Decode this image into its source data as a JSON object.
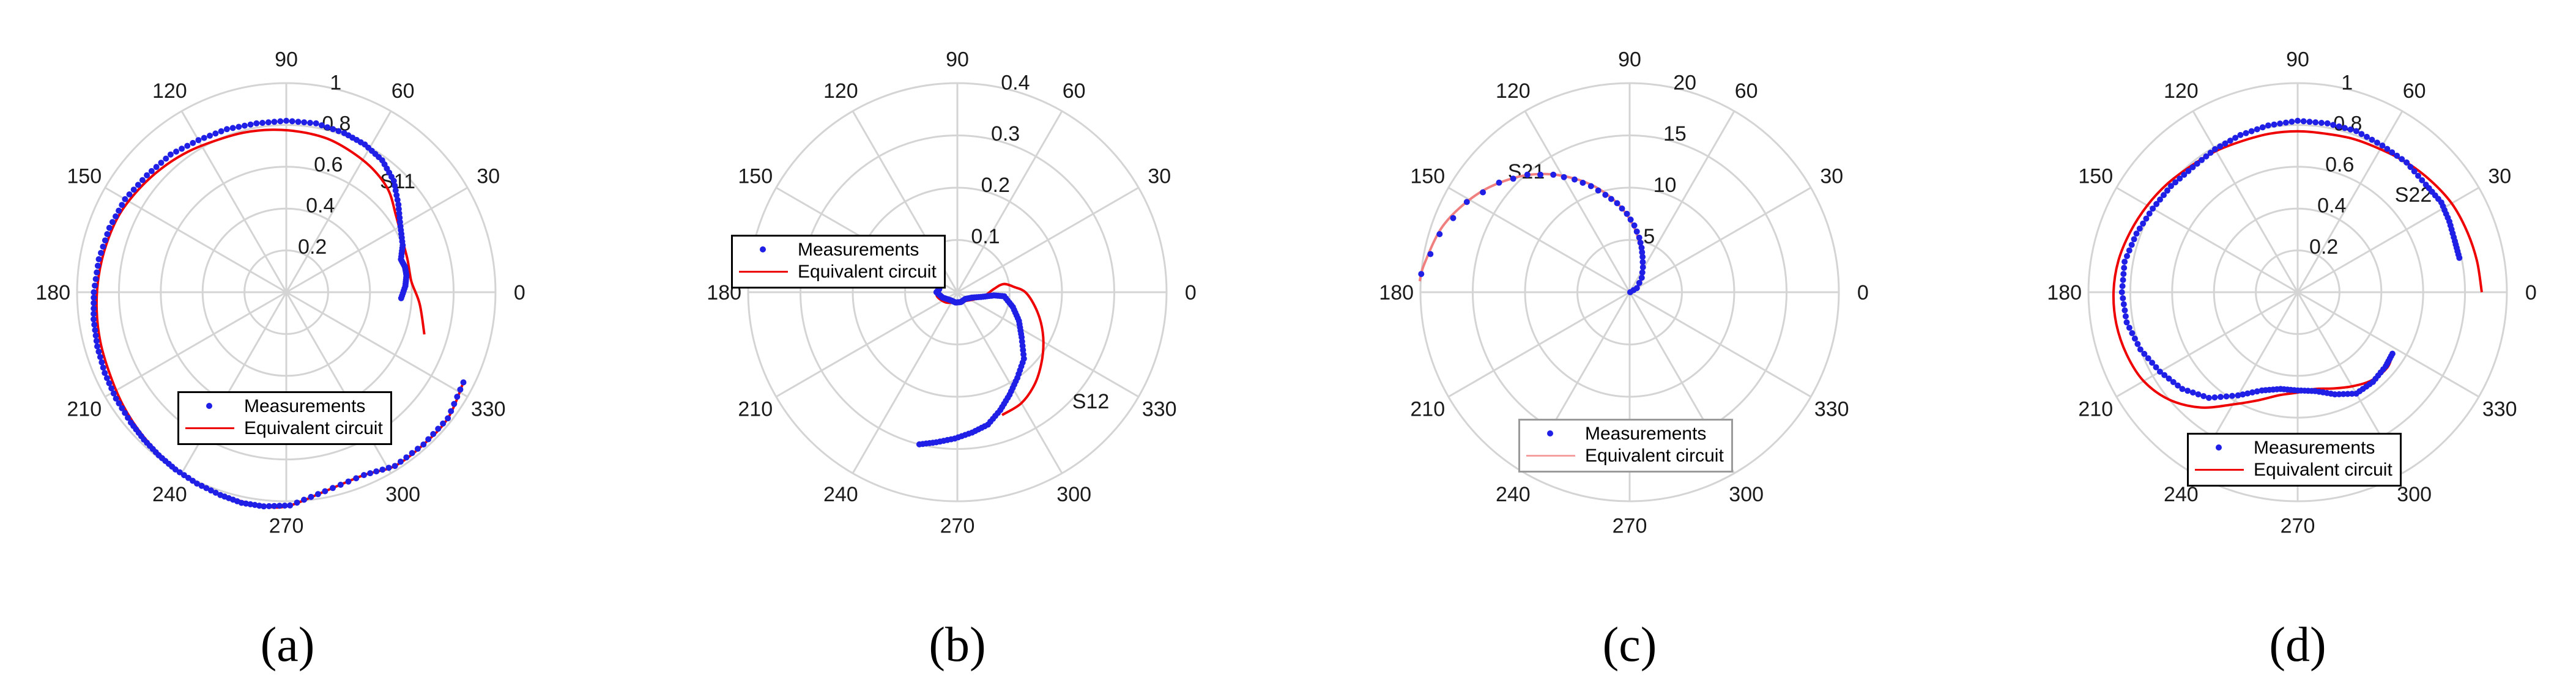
{
  "figure_captions": [
    "(a)",
    "(b)",
    "(c)",
    "(d)"
  ],
  "colors": {
    "measurement": "#1f1fe6",
    "circuit": "#ee0000",
    "grid": "#d4d4d4",
    "axis_text": "#1a1a1a"
  },
  "chart_data": [
    {
      "type": "polar",
      "panel": "a",
      "caption": "(a)",
      "annotation": "S11",
      "rmax": 1,
      "radial_ticks": [
        0.2,
        0.4,
        0.6,
        0.8,
        1
      ],
      "radial_tick_labels": [
        "0.2",
        "0.4",
        "0.6",
        "0.8",
        "1"
      ],
      "angle_ticks": [
        0,
        30,
        60,
        90,
        120,
        150,
        180,
        210,
        240,
        270,
        300,
        330
      ],
      "angle_tick_labels": [
        "0",
        "30",
        "60",
        "90",
        "120",
        "150",
        "180",
        "210",
        "240",
        "270",
        "300",
        "330"
      ],
      "legend": {
        "measurements": "Measurements",
        "circuit": "Equivalent circuit",
        "placement": "lower-center"
      },
      "series": [
        {
          "name": "Measurements",
          "style": "markers",
          "points": [
            [
              -3,
              0.55
            ],
            [
              3,
              0.57
            ],
            [
              8,
              0.58
            ],
            [
              12,
              0.58
            ],
            [
              16,
              0.57
            ],
            [
              22,
              0.6
            ],
            [
              30,
              0.63
            ],
            [
              38,
              0.68
            ],
            [
              46,
              0.74
            ],
            [
              54,
              0.78
            ],
            [
              62,
              0.8
            ],
            [
              70,
              0.81
            ],
            [
              80,
              0.82
            ],
            [
              90,
              0.82
            ],
            [
              100,
              0.82
            ],
            [
              110,
              0.83
            ],
            [
              120,
              0.84
            ],
            [
              130,
              0.86
            ],
            [
              140,
              0.87
            ],
            [
              150,
              0.89
            ],
            [
              160,
              0.9
            ],
            [
              170,
              0.91
            ],
            [
              180,
              0.92
            ],
            [
              188,
              0.93
            ],
            [
              196,
              0.94
            ],
            [
              204,
              0.95
            ],
            [
              212,
              0.96
            ],
            [
              220,
              0.97
            ],
            [
              226,
              0.98
            ],
            [
              232,
              0.99
            ],
            [
              238,
              1.0
            ],
            [
              245,
              1.01
            ],
            [
              252,
              1.02
            ],
            [
              258,
              1.03
            ],
            [
              264,
              1.03
            ],
            [
              271,
              1.02
            ],
            [
              281,
              0.97
            ],
            [
              293,
              0.95
            ],
            [
              302,
              0.98
            ],
            [
              312,
              0.98
            ],
            [
              322,
              0.98
            ],
            [
              333,
              0.95
            ]
          ]
        },
        {
          "name": "Equivalent circuit",
          "style": "line",
          "points": [
            [
              -17,
              0.69
            ],
            [
              -5,
              0.64
            ],
            [
              5,
              0.6
            ],
            [
              15,
              0.6
            ],
            [
              25,
              0.61
            ],
            [
              35,
              0.64
            ],
            [
              45,
              0.69
            ],
            [
              55,
              0.72
            ],
            [
              65,
              0.74
            ],
            [
              75,
              0.76
            ],
            [
              85,
              0.77
            ],
            [
              95,
              0.78
            ],
            [
              105,
              0.79
            ],
            [
              115,
              0.8
            ],
            [
              125,
              0.82
            ],
            [
              135,
              0.84
            ],
            [
              145,
              0.86
            ],
            [
              155,
              0.88
            ],
            [
              165,
              0.89
            ],
            [
              175,
              0.9
            ],
            [
              185,
              0.91
            ],
            [
              195,
              0.92
            ],
            [
              205,
              0.93
            ],
            [
              215,
              0.95
            ],
            [
              225,
              0.97
            ],
            [
              235,
              0.99
            ],
            [
              245,
              1.01
            ],
            [
              255,
              1.02
            ],
            [
              265,
              1.03
            ],
            [
              271,
              1.02
            ],
            [
              281,
              0.97
            ],
            [
              293,
              0.95
            ],
            [
              302,
              0.98
            ],
            [
              312,
              0.98
            ],
            [
              322,
              0.98
            ],
            [
              333,
              0.95
            ]
          ]
        }
      ]
    },
    {
      "type": "polar",
      "panel": "b",
      "caption": "(b)",
      "annotation": "S12",
      "rmax": 0.4,
      "radial_ticks": [
        0.1,
        0.2,
        0.3,
        0.4
      ],
      "radial_tick_labels": [
        "0.1",
        "0.2",
        "0.3",
        "0.4"
      ],
      "angle_ticks": [
        0,
        30,
        60,
        90,
        120,
        150,
        180,
        210,
        240,
        270,
        300,
        330
      ],
      "angle_tick_labels": [
        "0",
        "30",
        "60",
        "90",
        "120",
        "150",
        "180",
        "210",
        "240",
        "270",
        "300",
        "330"
      ],
      "legend": {
        "measurements": "Measurements",
        "circuit": "Equivalent circuit",
        "placement": "left"
      },
      "series": [
        {
          "name": "Measurements",
          "style": "markers",
          "points": [
            [
              170,
              0.035
            ],
            [
              180,
              0.04
            ],
            [
              200,
              0.03
            ],
            [
              230,
              0.02
            ],
            [
              260,
              0.02
            ],
            [
              290,
              0.02
            ],
            [
              320,
              0.02
            ],
            [
              340,
              0.03
            ],
            [
              350,
              0.05
            ],
            [
              355,
              0.07
            ],
            [
              355,
              0.09
            ],
            [
              345,
              0.11
            ],
            [
              335,
              0.13
            ],
            [
              325,
              0.15
            ],
            [
              315,
              0.18
            ],
            [
              305,
              0.2
            ],
            [
              297,
              0.22
            ],
            [
              290,
              0.24
            ],
            [
              283,
              0.26
            ],
            [
              276,
              0.27
            ],
            [
              269,
              0.28
            ],
            [
              262,
              0.29
            ],
            [
              256,
              0.3
            ]
          ]
        },
        {
          "name": "Equivalent circuit",
          "style": "line",
          "points": [
            [
              170,
              0.035
            ],
            [
              190,
              0.04
            ],
            [
              220,
              0.03
            ],
            [
              260,
              0.02
            ],
            [
              300,
              0.02
            ],
            [
              330,
              0.03
            ],
            [
              350,
              0.05
            ],
            [
              5,
              0.07
            ],
            [
              10,
              0.09
            ],
            [
              5,
              0.11
            ],
            [
              0,
              0.13
            ],
            [
              350,
              0.15
            ],
            [
              340,
              0.17
            ],
            [
              330,
              0.19
            ],
            [
              320,
              0.21
            ],
            [
              310,
              0.23
            ],
            [
              300,
              0.245
            ],
            [
              290,
              0.25
            ]
          ]
        }
      ]
    },
    {
      "type": "polar",
      "panel": "c",
      "caption": "(c)",
      "annotation": "S21",
      "rmax": 20,
      "radial_ticks": [
        5,
        10,
        15,
        20
      ],
      "radial_tick_labels": [
        "5",
        "10",
        "15",
        "20"
      ],
      "angle_ticks": [
        0,
        30,
        60,
        90,
        120,
        150,
        180,
        210,
        240,
        270,
        300,
        330
      ],
      "angle_tick_labels": [
        "0",
        "30",
        "60",
        "90",
        "120",
        "150",
        "180",
        "210",
        "240",
        "270",
        "300",
        "330"
      ],
      "legend": {
        "measurements": "Measurements",
        "circuit": "Equivalent circuit",
        "placement": "bottom"
      },
      "series": [
        {
          "name": "Measurements",
          "style": "markers",
          "points": [
            [
              0,
              0.05
            ],
            [
              30,
              0.8
            ],
            [
              50,
              1.8
            ],
            [
              62,
              2.7
            ],
            [
              70,
              3.6
            ],
            [
              75,
              4.4
            ],
            [
              80,
              5.3
            ],
            [
              86,
              6.4
            ],
            [
              92,
              7.5
            ],
            [
              98,
              8.6
            ],
            [
              104,
              9.6
            ],
            [
              110,
              10.8
            ],
            [
              116,
              12.0
            ],
            [
              123,
              13.4
            ],
            [
              131,
              14.9
            ],
            [
              140,
              16.3
            ],
            [
              151,
              17.8
            ],
            [
              163,
              19.0
            ],
            [
              175,
              20.0
            ]
          ]
        },
        {
          "name": "Equivalent circuit",
          "style": "line",
          "points": [
            [
              0,
              0.05
            ],
            [
              20,
              0.5
            ],
            [
              40,
              1.3
            ],
            [
              55,
              2.2
            ],
            [
              66,
              3.1
            ],
            [
              74,
              4.0
            ],
            [
              80,
              5.0
            ],
            [
              86,
              6.2
            ],
            [
              93,
              7.6
            ],
            [
              100,
              9.0
            ],
            [
              108,
              10.6
            ],
            [
              116,
              12.1
            ],
            [
              125,
              13.8
            ],
            [
              135,
              15.5
            ],
            [
              147,
              17.3
            ],
            [
              160,
              18.9
            ],
            [
              172,
              19.8
            ],
            [
              177,
              20.1
            ]
          ]
        }
      ]
    },
    {
      "type": "polar",
      "panel": "d",
      "caption": "(d)",
      "annotation": "S22",
      "rmax": 1,
      "radial_ticks": [
        0.2,
        0.4,
        0.6,
        0.8,
        1
      ],
      "radial_tick_labels": [
        "0.2",
        "0.4",
        "0.6",
        "0.8",
        "1"
      ],
      "angle_ticks": [
        0,
        30,
        60,
        90,
        120,
        150,
        180,
        210,
        240,
        270,
        300,
        330
      ],
      "angle_tick_labels": [
        "0",
        "30",
        "60",
        "90",
        "120",
        "150",
        "180",
        "210",
        "240",
        "270",
        "300",
        "330"
      ],
      "legend": {
        "measurements": "Measurements",
        "circuit": "Equivalent circuit",
        "placement": "lower-center"
      },
      "series": [
        {
          "name": "Measurements",
          "style": "markers",
          "points": [
            [
              12,
              0.79
            ],
            [
              18,
              0.79
            ],
            [
              25,
              0.8
            ],
            [
              32,
              0.81
            ],
            [
              40,
              0.8
            ],
            [
              50,
              0.81
            ],
            [
              60,
              0.81
            ],
            [
              70,
              0.82
            ],
            [
              80,
              0.82
            ],
            [
              90,
              0.82
            ],
            [
              100,
              0.81
            ],
            [
              110,
              0.8
            ],
            [
              120,
              0.79
            ],
            [
              130,
              0.78
            ],
            [
              140,
              0.79
            ],
            [
              150,
              0.8
            ],
            [
              160,
              0.82
            ],
            [
              170,
              0.84
            ],
            [
              180,
              0.84
            ],
            [
              190,
              0.83
            ],
            [
              200,
              0.8
            ],
            [
              210,
              0.76
            ],
            [
              220,
              0.72
            ],
            [
              230,
              0.66
            ],
            [
              240,
              0.57
            ],
            [
              250,
              0.5
            ],
            [
              260,
              0.47
            ],
            [
              270,
              0.47
            ],
            [
              280,
              0.48
            ],
            [
              290,
              0.52
            ],
            [
              300,
              0.56
            ],
            [
              310,
              0.56
            ],
            [
              320,
              0.55
            ],
            [
              327,
              0.54
            ]
          ]
        },
        {
          "name": "Equivalent circuit",
          "style": "line",
          "points": [
            [
              0,
              0.88
            ],
            [
              10,
              0.87
            ],
            [
              20,
              0.86
            ],
            [
              30,
              0.85
            ],
            [
              40,
              0.83
            ],
            [
              50,
              0.81
            ],
            [
              60,
              0.79
            ],
            [
              70,
              0.78
            ],
            [
              80,
              0.77
            ],
            [
              90,
              0.77
            ],
            [
              100,
              0.77
            ],
            [
              110,
              0.77
            ],
            [
              120,
              0.78
            ],
            [
              130,
              0.79
            ],
            [
              140,
              0.81
            ],
            [
              150,
              0.83
            ],
            [
              160,
              0.85
            ],
            [
              170,
              0.87
            ],
            [
              180,
              0.88
            ],
            [
              190,
              0.88
            ],
            [
              200,
              0.87
            ],
            [
              210,
              0.85
            ],
            [
              220,
              0.8
            ],
            [
              230,
              0.72
            ],
            [
              240,
              0.62
            ],
            [
              250,
              0.55
            ],
            [
              260,
              0.5
            ],
            [
              270,
              0.48
            ],
            [
              280,
              0.47
            ],
            [
              290,
              0.49
            ],
            [
              300,
              0.52
            ],
            [
              310,
              0.55
            ],
            [
              320,
              0.56
            ],
            [
              327,
              0.54
            ]
          ]
        }
      ]
    }
  ]
}
